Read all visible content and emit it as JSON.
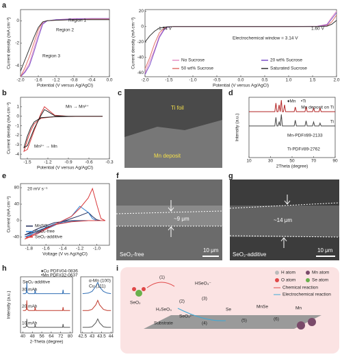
{
  "panel_labels": [
    "a",
    "b",
    "c",
    "d",
    "e",
    "f",
    "g",
    "h",
    "i"
  ],
  "images": {
    "c": {
      "labels": [
        "Ti foil",
        "Mn deposit"
      ]
    },
    "f": {
      "labels": [
        "~9 μm",
        "SeO₂-free",
        "10 μm"
      ]
    },
    "g": {
      "labels": [
        "~14 μm",
        "SeO₂-additive",
        "10 μm"
      ]
    }
  },
  "diagram": {
    "legend": [
      "H atom",
      "Mn atom",
      "O atom",
      "Se atom",
      "Chemical reaction",
      "Electrochemical reaction"
    ],
    "labels": [
      "(1)",
      "(2)",
      "(3)",
      "(4)",
      "(5)",
      "(6)",
      "SeO₂",
      "H₂SeO₃",
      "HSeO₃⁻",
      "SeO₃²⁻",
      "Se",
      "MnSe",
      "Mn",
      "Substrate"
    ]
  },
  "chart_data": [
    {
      "type": "line",
      "xlabel": "Potential (V versus Ag/AgCl)",
      "ylabel": "Current density (mA cm⁻²)",
      "x": [
        -2.0,
        -1.9,
        -1.8,
        -1.7,
        -1.6,
        -1.5,
        -1.4,
        -1.2,
        -0.8,
        -0.4,
        0.0
      ],
      "xlim": [
        -2.0,
        0.0
      ],
      "xticks": [
        {
          "value": -2.0,
          "label": "-2.0"
        },
        {
          "value": -1.6,
          "label": "-1.6"
        },
        {
          "value": -1.2,
          "label": "-1.2"
        },
        {
          "value": -0.8,
          "label": "-0.8"
        },
        {
          "value": -0.4,
          "label": "-0.4"
        },
        {
          "value": 0.0,
          "label": "0.0"
        }
      ],
      "ylim": [
        -5,
        1
      ],
      "yticks": [
        -4,
        -2,
        0
      ],
      "series": [
        {
          "color": "#e58fc4",
          "values": [
            -5,
            -4.5,
            -3.8,
            -2.5,
            -1.2,
            -0.2,
            0,
            0.1,
            0.2,
            0.2,
            0.2
          ]
        },
        {
          "color": "#7b4fc9",
          "values": [
            -5,
            -4.6,
            -4,
            -2.8,
            -1.5,
            -0.3,
            0,
            0.1,
            0.15,
            0.2,
            0.2
          ]
        },
        {
          "color": "#e0706a",
          "values": [
            -5,
            -4.2,
            -3.2,
            -2,
            -0.8,
            -0.1,
            0,
            0.05,
            0.1,
            0.15,
            0.15
          ]
        },
        {
          "color": "#333333",
          "values": [
            -4.5,
            -3.5,
            -2.5,
            -1.5,
            -0.6,
            -0.1,
            0,
            0.05,
            0.1,
            0.1,
            0.1
          ]
        }
      ],
      "annotations": [
        "Region 1",
        "Region 2",
        "Region 3"
      ]
    },
    {
      "type": "line",
      "xlabel": "Potential (V versus Ag/AgCl)",
      "ylabel": "Current density (mA cm⁻²)",
      "x": [
        -2.0,
        -1.9,
        -1.8,
        -1.7,
        -1.6,
        -1.54,
        -1.4,
        -1.0,
        0,
        1.0,
        1.6,
        1.8,
        1.9,
        2.0
      ],
      "xlim": [
        -2.0,
        2.0
      ],
      "xticks": [
        {
          "value": -2.0,
          "label": "-2.0"
        },
        {
          "value": -1.5,
          "label": "-1.5"
        },
        {
          "value": -1.0,
          "label": "-1.0"
        },
        {
          "value": -0.5,
          "label": "-0.5"
        },
        {
          "value": 0.0,
          "label": "0.0"
        },
        {
          "value": 0.5,
          "label": "0.5"
        },
        {
          "value": 1.0,
          "label": "1.0"
        },
        {
          "value": 1.5,
          "label": "1.5"
        },
        {
          "value": 2.0,
          "label": "2.0"
        }
      ],
      "ylim": [
        -65,
        22
      ],
      "yticks": [
        20,
        0,
        -20,
        -40,
        -60
      ],
      "legend": "bottom",
      "series": [
        {
          "name": "No Sucrose",
          "color": "#e58fc4",
          "values": [
            -60,
            -45,
            -30,
            -12,
            -3,
            -1,
            0,
            0,
            0,
            0,
            0.5,
            3,
            12,
            20
          ]
        },
        {
          "name": "20 wt% Sucrose",
          "color": "#7b4fc9",
          "values": [
            -62,
            -50,
            -32,
            -14,
            -4,
            -1,
            0,
            0,
            0,
            0,
            0.3,
            2,
            10,
            18
          ]
        },
        {
          "name": "50 wt% Sucrose",
          "color": "#e0706a",
          "values": [
            -55,
            -40,
            -22,
            -8,
            -2,
            -0.5,
            0,
            0,
            0,
            0,
            0.2,
            1,
            6,
            15
          ]
        },
        {
          "name": "Saturated Sucrose",
          "color": "#333333",
          "values": [
            -20,
            -12,
            -6,
            -2,
            -1,
            -0.3,
            0,
            0,
            0,
            0,
            0.1,
            0.5,
            3,
            8
          ]
        }
      ],
      "annotations": [
        "-1.54 V",
        "1.60 V",
        "Electrochemical window = 3.14 V"
      ]
    },
    {
      "type": "line",
      "xlabel": "Potential (V versus Ag/AgCl)",
      "ylabel": "Current density (mA cm⁻²)",
      "x": [
        -0.4,
        -0.8,
        -1.1,
        -1.3,
        -1.4,
        -1.45,
        -1.5,
        -1.55,
        -1.5,
        -1.4,
        -1.3,
        -1.25,
        -1.2,
        -1.1,
        -0.9,
        -0.4
      ],
      "xlim": [
        -1.6,
        -0.3
      ],
      "xticks": [
        {
          "value": -1.5,
          "label": "-1.5"
        },
        {
          "value": -1.2,
          "label": "-1.2"
        },
        {
          "value": -0.9,
          "label": "-0.9"
        },
        {
          "value": -0.6,
          "label": "-0.6"
        },
        {
          "value": -0.3,
          "label": "-0.3"
        }
      ],
      "ylim": [
        -4.5,
        2
      ],
      "yticks": [
        1,
        0,
        -1,
        -2,
        -3,
        -4
      ],
      "series": [
        {
          "color": "#d9383a",
          "values": [
            0,
            0,
            -0.05,
            -0.2,
            -0.8,
            -1.5,
            -2.5,
            -3.7,
            -3.5,
            -1.5,
            0.3,
            1.0,
            0.7,
            0.1,
            0,
            0
          ]
        },
        {
          "color": "#222222",
          "values": [
            0,
            0,
            -0.05,
            -0.15,
            -0.6,
            -1.2,
            -2.1,
            -3.3,
            -3.1,
            -1.3,
            0.1,
            0.7,
            0.5,
            0.05,
            0,
            0
          ]
        }
      ],
      "annotations": [
        "Mn → Mn²⁺",
        "Mn²⁺ → Mn"
      ]
    },
    {
      "type": "line",
      "xlabel": "2Theta (degree)",
      "ylabel": "Intensity (a.u.)",
      "x": [
        10,
        34,
        35,
        36,
        37,
        38,
        39,
        40,
        41,
        42,
        43,
        44,
        52,
        53,
        54,
        62,
        63,
        64,
        69,
        70,
        71,
        75,
        76,
        77,
        90
      ],
      "xlim": [
        10,
        90
      ],
      "xticks": [
        10,
        30,
        50,
        70,
        90
      ],
      "ylim": [
        0,
        105
      ],
      "legend": "inline right",
      "series": [
        {
          "name": "Mn deposit on Ti",
          "color": "#b22222",
          "values": [
            80,
            80,
            95,
            80,
            80,
            92,
            80,
            100,
            80,
            80,
            92,
            80,
            80,
            88,
            80,
            80,
            88,
            80,
            80,
            86,
            80,
            80,
            86,
            80,
            80
          ]
        },
        {
          "name": "Ti",
          "color": "#444444",
          "values": [
            55,
            55,
            70,
            55,
            55,
            62,
            55,
            75,
            55,
            55,
            55,
            55,
            55,
            65,
            55,
            55,
            64,
            55,
            55,
            62,
            55,
            55,
            60,
            55,
            55
          ]
        }
      ],
      "annotations": [
        "♦Mn",
        "•Ti",
        "Mn-PDF#89-2133",
        "Ti-PDF#89-2762"
      ]
    },
    {
      "type": "line",
      "xlabel": "Voltage (V vs Ag/AgCl)",
      "ylabel": "Current (mA cm⁻²)",
      "x": [
        -0.9,
        -1.1,
        -1.3,
        -1.5,
        -1.7,
        -1.85,
        -1.7,
        -1.5,
        -1.3,
        -1.2,
        -1.1,
        -1.05,
        -1.0,
        -0.95,
        -0.9
      ],
      "xlim": [
        -1.9,
        -0.85
      ],
      "xticks": [
        {
          "value": -1.8,
          "label": "-1.8"
        },
        {
          "value": -1.6,
          "label": "-1.6"
        },
        {
          "value": -1.4,
          "label": "-1.4"
        },
        {
          "value": -1.2,
          "label": "-1.2"
        },
        {
          "value": -1.0,
          "label": "-1.0"
        }
      ],
      "ylim": [
        -60,
        90
      ],
      "yticks": [
        -40,
        0,
        40,
        80
      ],
      "legend": "lower left",
      "series": [
        {
          "name": "MnSO₄",
          "color": "#1f2a5a",
          "values": [
            0,
            0,
            0,
            -5,
            -20,
            -35,
            -25,
            -10,
            5,
            12,
            20,
            10,
            2,
            0,
            0
          ]
        },
        {
          "name": "SeO₂-free",
          "color": "#2f7fd0",
          "values": [
            0,
            0,
            -2,
            -8,
            -25,
            -40,
            -30,
            -12,
            10,
            35,
            20,
            5,
            0,
            0,
            0
          ]
        },
        {
          "name": "SeO₂-additive",
          "color": "#d9383a",
          "values": [
            0,
            0,
            -3,
            -10,
            -28,
            -45,
            -32,
            -10,
            10,
            30,
            55,
            78,
            40,
            5,
            0
          ]
        }
      ],
      "annotations": [
        "20 mV s⁻¹"
      ]
    },
    {
      "type": "line",
      "xlabel": "2-Theta (degree)",
      "ylabel": "Intensity (a.u.)",
      "x": [
        40,
        42,
        43,
        43.3,
        43.6,
        45,
        50,
        50.4,
        50.8,
        56,
        64,
        70,
        73.6,
        74,
        74.4,
        80
      ],
      "xlim": [
        38,
        82
      ],
      "xticks": [
        40,
        48,
        56,
        64,
        72,
        80
      ],
      "ylim": [
        0,
        100
      ],
      "legend": "inline left",
      "series": [
        {
          "name": "10 mAh",
          "color": "#555555",
          "values": [
            10,
            10,
            12,
            25,
            12,
            10,
            10,
            16,
            10,
            10,
            10,
            10,
            10,
            16,
            10,
            10
          ]
        },
        {
          "name": "20 mAh",
          "color": "#c0392b",
          "values": [
            40,
            40,
            42,
            58,
            42,
            40,
            40,
            47,
            40,
            40,
            40,
            40,
            40,
            46,
            40,
            40
          ]
        },
        {
          "name": "30 mAh",
          "color": "#2e6db4",
          "values": [
            70,
            70,
            72,
            90,
            72,
            70,
            70,
            78,
            70,
            70,
            70,
            70,
            70,
            77,
            70,
            70
          ]
        }
      ],
      "annotations": [
        "SeO₂-additive",
        "♦Cu PDF#04-0836",
        "•Mn PDF#32-0637"
      ]
    },
    {
      "type": "line",
      "x": [
        42.5,
        42.8,
        43.0,
        43.2,
        43.3,
        43.4,
        43.6,
        43.8,
        44.0
      ],
      "xlim": [
        42.4,
        44.1
      ],
      "xticks": [
        42.5,
        43.0,
        43.5,
        44.0
      ],
      "ylim": [
        0,
        100
      ],
      "series": [
        {
          "color": "#555555",
          "values": [
            10,
            10,
            11,
            18,
            25,
            18,
            11,
            10,
            10
          ]
        },
        {
          "color": "#c0392b",
          "values": [
            40,
            40,
            42,
            50,
            58,
            50,
            42,
            40,
            40
          ]
        },
        {
          "color": "#2e6db4",
          "values": [
            70,
            71,
            74,
            83,
            90,
            82,
            74,
            71,
            70
          ]
        }
      ],
      "annotations": [
        "α-Mn (100)",
        "Cu (111)"
      ]
    }
  ]
}
